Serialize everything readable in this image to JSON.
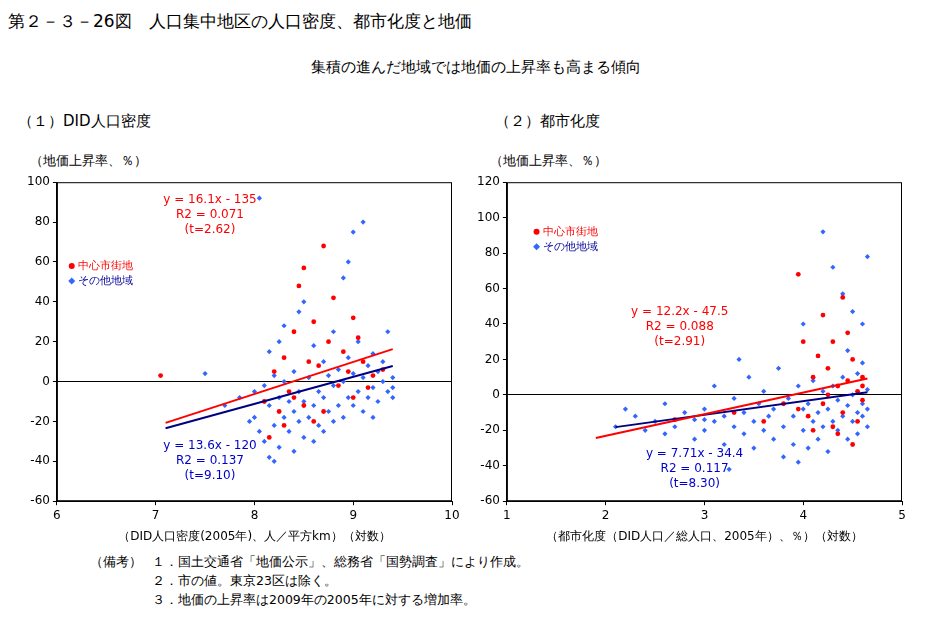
{
  "title": "第２－３－26図　人口集中地区の人口密度、都市化度と地価",
  "subtitle": "集積の進んだ地域では地価の上昇率も高まる傾向",
  "notes": {
    "label": "（備考）",
    "items": [
      "１．国土交通省「地価公示」、総務省「国勢調査」により作成。",
      "２．市の値。東京23区は除く。",
      "３．地価の上昇率は2009年の2005年に対する増加率。"
    ]
  },
  "chart_data": [
    {
      "type": "scatter",
      "title": "（１）DID人口密度",
      "y_label": "（地価上昇率、％）",
      "x_label": "（DID人口密度(2005年)、人／平方km）（対数）",
      "xlim": [
        6,
        10
      ],
      "xticks": [
        6,
        7,
        8,
        9,
        10
      ],
      "ylim": [
        -60,
        100
      ],
      "yticks": [
        -60,
        -40,
        -20,
        0,
        20,
        40,
        60,
        80,
        100
      ],
      "grid": false,
      "legend": "upper left",
      "series": [
        {
          "name": "中心市街地",
          "color": "#ff0000",
          "marker": "circle",
          "values": [
            [
              7.05,
              3
            ],
            [
              8.1,
              -10
            ],
            [
              8.2,
              5
            ],
            [
              8.25,
              -15
            ],
            [
              8.3,
              12
            ],
            [
              8.35,
              -5
            ],
            [
              8.4,
              25
            ],
            [
              8.45,
              48
            ],
            [
              8.5,
              57
            ],
            [
              8.55,
              10
            ],
            [
              8.6,
              -20
            ],
            [
              8.6,
              30
            ],
            [
              8.65,
              8
            ],
            [
              8.7,
              68
            ],
            [
              8.75,
              20
            ],
            [
              8.8,
              42
            ],
            [
              8.85,
              -2
            ],
            [
              8.9,
              15
            ],
            [
              8.95,
              5
            ],
            [
              9.0,
              32
            ],
            [
              9.0,
              -8
            ],
            [
              9.05,
              22
            ],
            [
              9.1,
              10
            ],
            [
              9.15,
              -3
            ],
            [
              9.2,
              3
            ],
            [
              8.3,
              -22
            ],
            [
              8.4,
              -8
            ],
            [
              8.15,
              -28
            ],
            [
              8.5,
              -12
            ],
            [
              9.3,
              6
            ],
            [
              8.7,
              -15
            ]
          ]
        },
        {
          "name": "その他地域",
          "color": "#3366ff",
          "marker": "diamond",
          "values": [
            [
              7.5,
              4
            ],
            [
              7.7,
              -12
            ],
            [
              7.85,
              -8
            ],
            [
              7.95,
              -20
            ],
            [
              8.0,
              -18
            ],
            [
              8.0,
              -5
            ],
            [
              8.05,
              92
            ],
            [
              8.05,
              -25
            ],
            [
              8.1,
              -30
            ],
            [
              8.1,
              -2
            ],
            [
              8.15,
              -12
            ],
            [
              8.15,
              15
            ],
            [
              8.2,
              -40
            ],
            [
              8.2,
              -22
            ],
            [
              8.2,
              3
            ],
            [
              8.25,
              -8
            ],
            [
              8.25,
              -33
            ],
            [
              8.3,
              -18
            ],
            [
              8.3,
              0
            ],
            [
              8.3,
              28
            ],
            [
              8.35,
              -25
            ],
            [
              8.35,
              -10
            ],
            [
              8.4,
              -15
            ],
            [
              8.4,
              -35
            ],
            [
              8.4,
              5
            ],
            [
              8.45,
              -20
            ],
            [
              8.45,
              -5
            ],
            [
              8.5,
              -28
            ],
            [
              8.5,
              -10
            ],
            [
              8.5,
              40
            ],
            [
              8.55,
              -18
            ],
            [
              8.55,
              2
            ],
            [
              8.6,
              -30
            ],
            [
              8.6,
              -12
            ],
            [
              8.6,
              18
            ],
            [
              8.65,
              -22
            ],
            [
              8.65,
              -5
            ],
            [
              8.7,
              -25
            ],
            [
              8.7,
              -8
            ],
            [
              8.7,
              10
            ],
            [
              8.75,
              -15
            ],
            [
              8.75,
              3
            ],
            [
              8.8,
              -20
            ],
            [
              8.8,
              -2
            ],
            [
              8.8,
              25
            ],
            [
              8.85,
              -12
            ],
            [
              8.85,
              6
            ],
            [
              8.9,
              -18
            ],
            [
              8.9,
              52
            ],
            [
              8.9,
              0
            ],
            [
              8.95,
              -8
            ],
            [
              8.95,
              12
            ],
            [
              9.0,
              75
            ],
            [
              9.0,
              -12
            ],
            [
              9.0,
              4
            ],
            [
              9.05,
              -5
            ],
            [
              9.05,
              20
            ],
            [
              9.1,
              80
            ],
            [
              9.1,
              -15
            ],
            [
              9.1,
              2
            ],
            [
              9.15,
              -8
            ],
            [
              9.15,
              8
            ],
            [
              9.2,
              -3
            ],
            [
              9.2,
              14
            ],
            [
              9.2,
              -18
            ],
            [
              9.25,
              5
            ],
            [
              9.25,
              -10
            ],
            [
              9.3,
              0
            ],
            [
              9.3,
              10
            ],
            [
              9.35,
              -5
            ],
            [
              9.35,
              25
            ],
            [
              9.4,
              2
            ],
            [
              9.4,
              -8
            ],
            [
              8.45,
              35
            ],
            [
              8.25,
              20
            ],
            [
              8.15,
              -38
            ],
            [
              9.4,
              -3
            ],
            [
              8.95,
              60
            ]
          ]
        },
        {
          "type": "line",
          "color": "#ff0000",
          "line_style": "solid",
          "values": [
            [
              7.1,
              -20.7
            ],
            [
              9.4,
              16.3
            ]
          ],
          "annotation": [
            "y = 16.1x - 135",
            "R2 = 0.071",
            "(t=2.62)"
          ]
        },
        {
          "type": "line",
          "color": "#000080",
          "line_style": "solid",
          "values": [
            [
              7.1,
              -23.4
            ],
            [
              9.4,
              7.8
            ]
          ],
          "annotation": [
            "y = 13.6x - 120",
            "R2 = 0.137",
            "(t=9.10)"
          ]
        }
      ]
    },
    {
      "type": "scatter",
      "title": "（２）都市化度",
      "y_label": "（地価上昇率、％）",
      "x_label": "（都市化度（DID人口／総人口、2005年）、％）（対数）",
      "xlim": [
        1,
        5
      ],
      "xticks": [
        1,
        2,
        3,
        4,
        5
      ],
      "ylim": [
        -60,
        120
      ],
      "yticks": [
        -60,
        -40,
        -20,
        0,
        20,
        40,
        60,
        80,
        100,
        120
      ],
      "grid": false,
      "legend": "upper left",
      "series": [
        {
          "name": "中心市街地",
          "color": "#ff0000",
          "marker": "circle",
          "values": [
            [
              2.7,
              -14
            ],
            [
              3.3,
              -10
            ],
            [
              3.6,
              -15
            ],
            [
              3.8,
              -5
            ],
            [
              3.95,
              68
            ],
            [
              3.95,
              -8
            ],
            [
              4.0,
              30
            ],
            [
              4.05,
              -12
            ],
            [
              4.1,
              10
            ],
            [
              4.15,
              22
            ],
            [
              4.2,
              -5
            ],
            [
              4.2,
              45
            ],
            [
              4.25,
              15
            ],
            [
              4.3,
              -18
            ],
            [
              4.3,
              30
            ],
            [
              4.35,
              5
            ],
            [
              4.4,
              55
            ],
            [
              4.4,
              -10
            ],
            [
              4.45,
              35
            ],
            [
              4.45,
              8
            ],
            [
              4.5,
              -28
            ],
            [
              4.5,
              20
            ],
            [
              4.55,
              2
            ],
            [
              4.55,
              -15
            ],
            [
              4.6,
              10
            ],
            [
              4.6,
              -3
            ],
            [
              4.35,
              -22
            ],
            [
              4.25,
              0
            ],
            [
              4.1,
              -20
            ],
            [
              4.6,
              5
            ]
          ]
        },
        {
          "name": "その他地域",
          "color": "#3366ff",
          "marker": "diamond",
          "values": [
            [
              2.1,
              -18
            ],
            [
              2.2,
              -8
            ],
            [
              2.3,
              -12
            ],
            [
              2.4,
              -20
            ],
            [
              2.5,
              -15
            ],
            [
              2.6,
              -22
            ],
            [
              2.6,
              -5
            ],
            [
              2.7,
              -18
            ],
            [
              2.8,
              -10
            ],
            [
              2.9,
              -25
            ],
            [
              2.9,
              -14
            ],
            [
              3.0,
              -20
            ],
            [
              3.0,
              -8
            ],
            [
              3.1,
              -15
            ],
            [
              3.1,
              5
            ],
            [
              3.2,
              -28
            ],
            [
              3.2,
              -12
            ],
            [
              3.25,
              -42
            ],
            [
              3.3,
              -18
            ],
            [
              3.3,
              -2
            ],
            [
              3.35,
              20
            ],
            [
              3.4,
              -10
            ],
            [
              3.4,
              -22
            ],
            [
              3.45,
              10
            ],
            [
              3.5,
              -15
            ],
            [
              3.5,
              -30
            ],
            [
              3.55,
              -5
            ],
            [
              3.6,
              -20
            ],
            [
              3.6,
              2
            ],
            [
              3.65,
              -12
            ],
            [
              3.7,
              -25
            ],
            [
              3.7,
              -8
            ],
            [
              3.75,
              15
            ],
            [
              3.8,
              -18
            ],
            [
              3.8,
              -35
            ],
            [
              3.85,
              -2
            ],
            [
              3.9,
              -12
            ],
            [
              3.9,
              -28
            ],
            [
              3.95,
              5
            ],
            [
              4.0,
              -20
            ],
            [
              4.0,
              -8
            ],
            [
              4.0,
              40
            ],
            [
              4.05,
              -30
            ],
            [
              4.05,
              -5
            ],
            [
              4.1,
              -15
            ],
            [
              4.1,
              8
            ],
            [
              4.15,
              -25
            ],
            [
              4.15,
              -10
            ],
            [
              4.2,
              92
            ],
            [
              4.2,
              -18
            ],
            [
              4.2,
              2
            ],
            [
              4.25,
              -8
            ],
            [
              4.25,
              -32
            ],
            [
              4.3,
              72
            ],
            [
              4.3,
              -15
            ],
            [
              4.3,
              5
            ],
            [
              4.35,
              -20
            ],
            [
              4.35,
              -3
            ],
            [
              4.4,
              57
            ],
            [
              4.4,
              -12
            ],
            [
              4.4,
              10
            ],
            [
              4.45,
              -25
            ],
            [
              4.45,
              -6
            ],
            [
              4.5,
              47
            ],
            [
              4.5,
              -15
            ],
            [
              4.5,
              0
            ],
            [
              4.55,
              -10
            ],
            [
              4.55,
              12
            ],
            [
              4.55,
              -22
            ],
            [
              4.6,
              -5
            ],
            [
              4.6,
              18
            ],
            [
              4.6,
              -12
            ],
            [
              4.65,
              78
            ],
            [
              4.65,
              -8
            ],
            [
              4.65,
              3
            ],
            [
              4.65,
              -18
            ],
            [
              3.0,
              -14
            ],
            [
              3.95,
              -38
            ],
            [
              4.45,
              25
            ],
            [
              4.6,
              40
            ]
          ]
        },
        {
          "type": "line",
          "color": "#ff0000",
          "line_style": "solid",
          "values": [
            [
              1.9,
              -24.3
            ],
            [
              4.65,
              9.2
            ]
          ],
          "annotation": [
            "y = 12.2x - 47.5",
            "R2 = 0.088",
            "(t=2.91)"
          ]
        },
        {
          "type": "line",
          "color": "#000080",
          "line_style": "solid",
          "values": [
            [
              2.1,
              -18.2
            ],
            [
              4.65,
              1.5
            ]
          ],
          "annotation": [
            "y = 7.71x - 34.4",
            "R2 = 0.117",
            "(t=8.30)"
          ]
        }
      ]
    }
  ]
}
